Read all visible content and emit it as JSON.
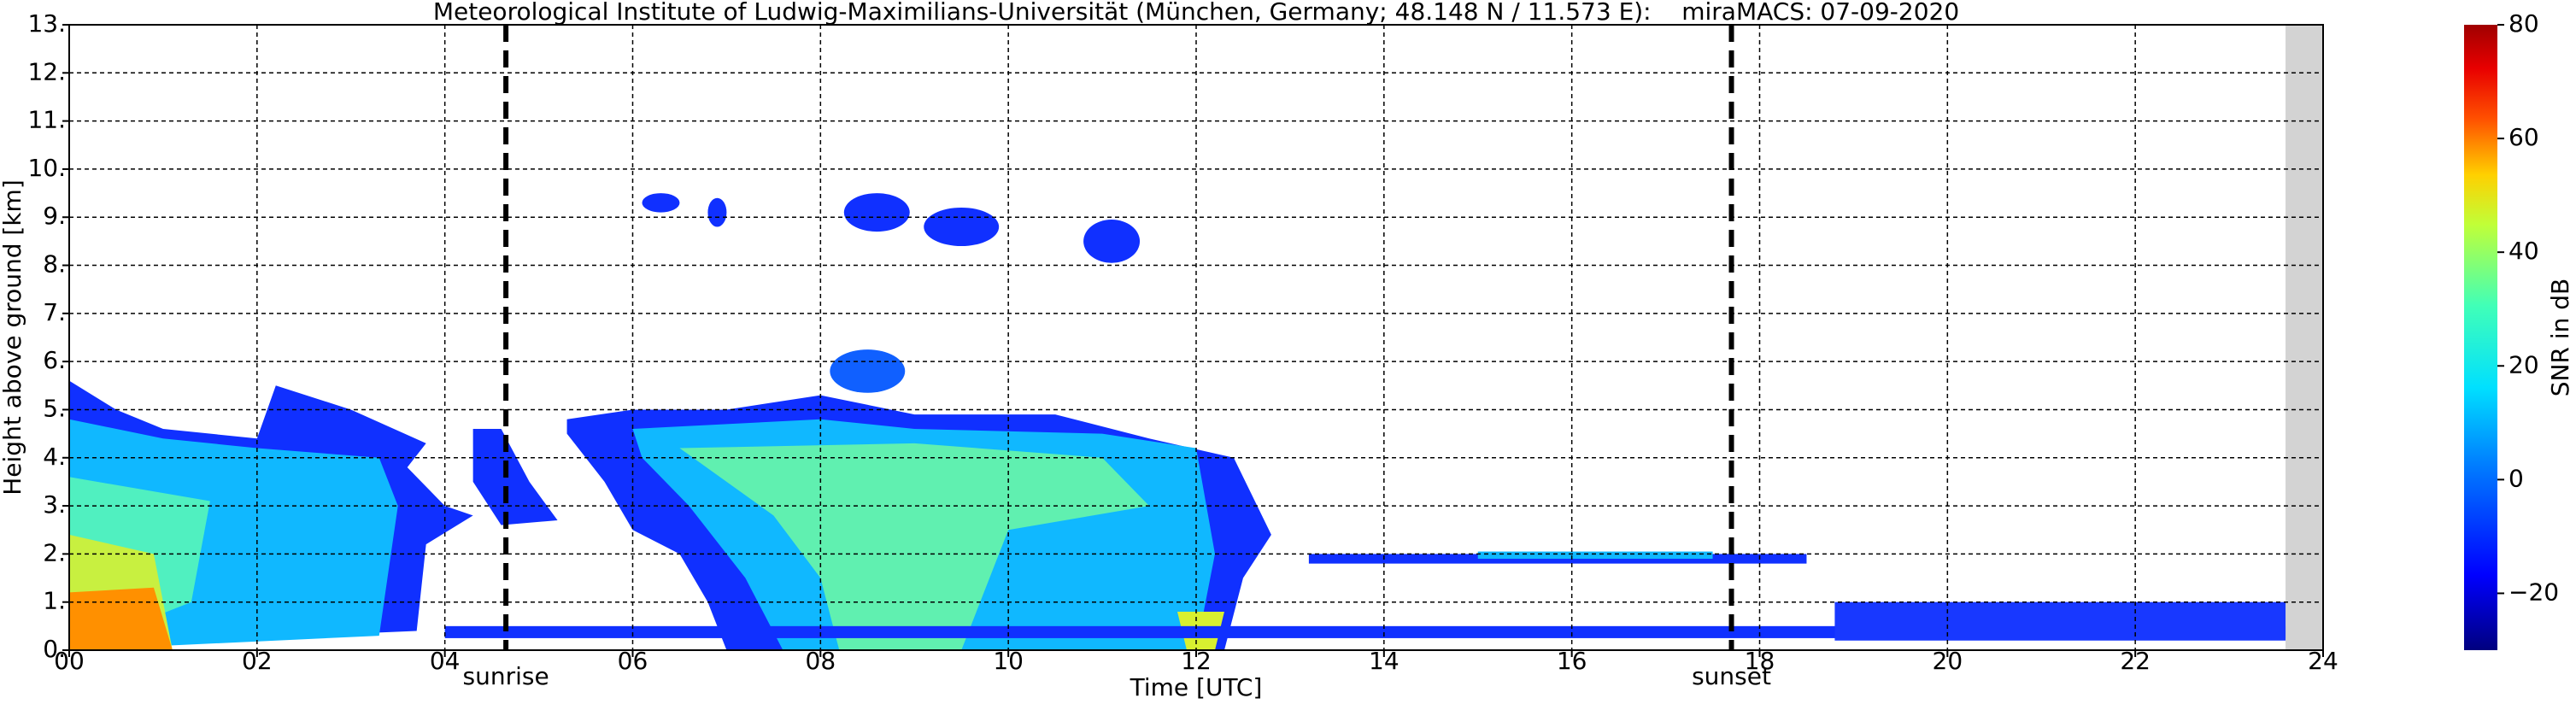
{
  "chart_data": {
    "type": "heatmap",
    "title": "Meteorological Institute of Ludwig-Maximilians-Universität (München, Germany; 48.148 N / 11.573 E):    miraMACS: 07-09-2020",
    "xlabel": "Time [UTC]",
    "ylabel": "Height above ground [km]",
    "xlim": [
      0,
      24
    ],
    "xticks": [
      {
        "value": 0,
        "label": "00"
      },
      {
        "value": 2,
        "label": "02"
      },
      {
        "value": 4,
        "label": "04"
      },
      {
        "value": 6,
        "label": "06"
      },
      {
        "value": 8,
        "label": "08"
      },
      {
        "value": 10,
        "label": "10"
      },
      {
        "value": 12,
        "label": "12"
      },
      {
        "value": 14,
        "label": "14"
      },
      {
        "value": 16,
        "label": "16"
      },
      {
        "value": 18,
        "label": "18"
      },
      {
        "value": 20,
        "label": "20"
      },
      {
        "value": 22,
        "label": "22"
      },
      {
        "value": 24,
        "label": "24"
      }
    ],
    "ylim": [
      0,
      13
    ],
    "yticks": [
      {
        "value": 0,
        "label": "0."
      },
      {
        "value": 1,
        "label": "1."
      },
      {
        "value": 2,
        "label": "2."
      },
      {
        "value": 3,
        "label": "3."
      },
      {
        "value": 4,
        "label": "4."
      },
      {
        "value": 5,
        "label": "5."
      },
      {
        "value": 6,
        "label": "6."
      },
      {
        "value": 7,
        "label": "7."
      },
      {
        "value": 8,
        "label": "8."
      },
      {
        "value": 9,
        "label": "9."
      },
      {
        "value": 10,
        "label": "10."
      },
      {
        "value": 11,
        "label": "11."
      },
      {
        "value": 12,
        "label": "12."
      },
      {
        "value": 13,
        "label": "13."
      }
    ],
    "grid": true,
    "colorbar": {
      "label": "SNR in dB",
      "lim": [
        -30,
        80
      ],
      "ticks": [
        {
          "value": -20,
          "label": "−20"
        },
        0,
        20,
        40,
        60,
        80
      ]
    },
    "vlines": [
      {
        "x": 4.65,
        "label": "sunrise"
      },
      {
        "x": 17.7,
        "label": "sunset"
      }
    ]
  }
}
